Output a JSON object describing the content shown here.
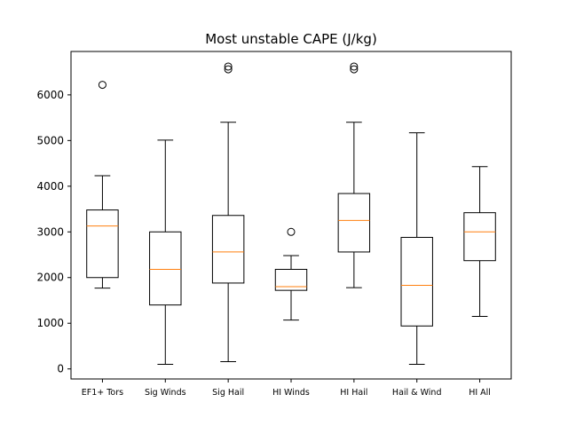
{
  "chart_data": {
    "type": "box",
    "title": "Most unstable CAPE (J/kg)",
    "xlabel": "",
    "ylabel": "",
    "ylim": [
      -220,
      6950
    ],
    "yticks": [
      0,
      1000,
      2000,
      3000,
      4000,
      5000,
      6000
    ],
    "grid": false,
    "categories": [
      "EF1+ Tors",
      "Sig Winds",
      "Sig Hail",
      "HI Winds",
      "HI Hail",
      "Hail & Wind",
      "HI All"
    ],
    "boxes": [
      {
        "whisker_low": 1770,
        "q1": 2000,
        "median": 3130,
        "q3": 3480,
        "whisker_high": 4230,
        "outliers": [
          6220
        ]
      },
      {
        "whisker_low": 100,
        "q1": 1400,
        "median": 2180,
        "q3": 3000,
        "whisker_high": 5010,
        "outliers": []
      },
      {
        "whisker_low": 160,
        "q1": 1880,
        "median": 2560,
        "q3": 3360,
        "whisker_high": 5400,
        "outliers": [
          6560,
          6620
        ]
      },
      {
        "whisker_low": 1070,
        "q1": 1720,
        "median": 1800,
        "q3": 2180,
        "whisker_high": 2480,
        "outliers": [
          3000
        ]
      },
      {
        "whisker_low": 1780,
        "q1": 2560,
        "median": 3250,
        "q3": 3840,
        "whisker_high": 5400,
        "outliers": [
          6560,
          6620
        ]
      },
      {
        "whisker_low": 100,
        "q1": 940,
        "median": 1830,
        "q3": 2880,
        "whisker_high": 5170,
        "outliers": []
      },
      {
        "whisker_low": 1150,
        "q1": 2370,
        "median": 3000,
        "q3": 3420,
        "whisker_high": 4430,
        "outliers": []
      }
    ],
    "colors": {
      "box": "#000000",
      "median": "#ff7f0e",
      "outlier": "#000000"
    }
  }
}
